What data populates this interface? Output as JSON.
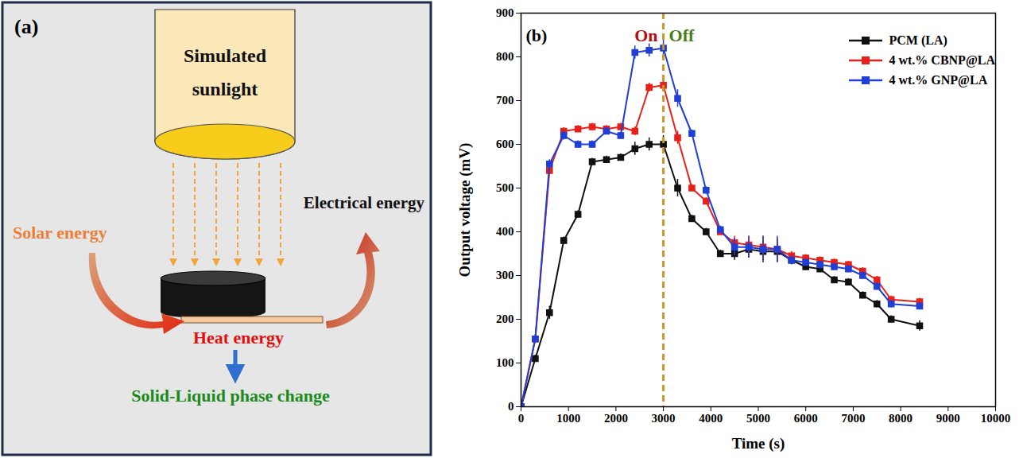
{
  "diagram": {
    "label": "(a)",
    "lamp": "Simulated sunlight",
    "input": "Solar energy",
    "output": "Electrical energy",
    "middle": "Heat energy",
    "result": "Solid-Liquid phase change"
  },
  "chart_data": {
    "type": "line",
    "panel": "(b)",
    "x_label": "Time (s)",
    "y_label": "Output voltage (mV)",
    "x": [
      0,
      300,
      600,
      900,
      1200,
      1500,
      1800,
      2100,
      2400,
      2700,
      3000,
      3300,
      3600,
      3900,
      4200,
      4500,
      4800,
      5100,
      5400,
      5700,
      6000,
      6300,
      6600,
      6900,
      7200,
      7500,
      7800,
      8400
    ],
    "series": [
      {
        "name": "PCM (LA)",
        "color": "#111111",
        "marker": "square",
        "line_style": "solid",
        "values": [
          0,
          110,
          215,
          380,
          440,
          560,
          565,
          570,
          590,
          600,
          600,
          500,
          430,
          400,
          350,
          350,
          360,
          355,
          355,
          335,
          320,
          315,
          290,
          285,
          255,
          235,
          200,
          185
        ],
        "errors": [
          0,
          8,
          15,
          8,
          8,
          8,
          8,
          8,
          15,
          15,
          20,
          20,
          8,
          8,
          8,
          15,
          20,
          25,
          25,
          10,
          8,
          8,
          8,
          8,
          8,
          8,
          8,
          12
        ]
      },
      {
        "name": "4 wt.% CBNP@LA",
        "color": "#e8201a",
        "marker": "square",
        "line_style": "solid",
        "values": [
          0,
          155,
          540,
          630,
          635,
          640,
          635,
          640,
          630,
          730,
          735,
          615,
          500,
          470,
          400,
          375,
          370,
          365,
          360,
          345,
          340,
          335,
          330,
          325,
          310,
          290,
          245,
          240
        ],
        "errors": [
          0,
          8,
          8,
          8,
          8,
          8,
          8,
          8,
          10,
          10,
          15,
          15,
          8,
          8,
          8,
          15,
          20,
          25,
          25,
          10,
          8,
          8,
          8,
          8,
          8,
          8,
          8,
          8
        ]
      },
      {
        "name": "4 wt.% GNP@LA",
        "color": "#1f3fd6",
        "marker": "square",
        "line_style": "solid",
        "values": [
          0,
          155,
          555,
          620,
          600,
          600,
          630,
          620,
          810,
          815,
          820,
          705,
          625,
          495,
          405,
          365,
          365,
          360,
          360,
          335,
          330,
          325,
          320,
          315,
          300,
          275,
          235,
          230
        ],
        "errors": [
          0,
          10,
          10,
          10,
          8,
          8,
          8,
          8,
          15,
          15,
          20,
          20,
          8,
          8,
          8,
          20,
          25,
          30,
          30,
          10,
          8,
          8,
          8,
          8,
          8,
          8,
          8,
          8
        ]
      }
    ],
    "xlim": [
      0,
      10000
    ],
    "xticks": [
      0,
      1000,
      2000,
      3000,
      4000,
      5000,
      6000,
      7000,
      8000,
      9000,
      10000
    ],
    "ylim": [
      0,
      900
    ],
    "yticks": [
      0,
      100,
      200,
      300,
      400,
      500,
      600,
      700,
      800,
      900
    ],
    "legend": "top-right",
    "grid": false,
    "annotations": [
      {
        "text": "On",
        "color": "#b01010"
      },
      {
        "text": "Off",
        "color": "#4a7a1a"
      }
    ],
    "vline": {
      "x": 3000,
      "color": "#c8962a",
      "line_style": "dashed"
    }
  }
}
